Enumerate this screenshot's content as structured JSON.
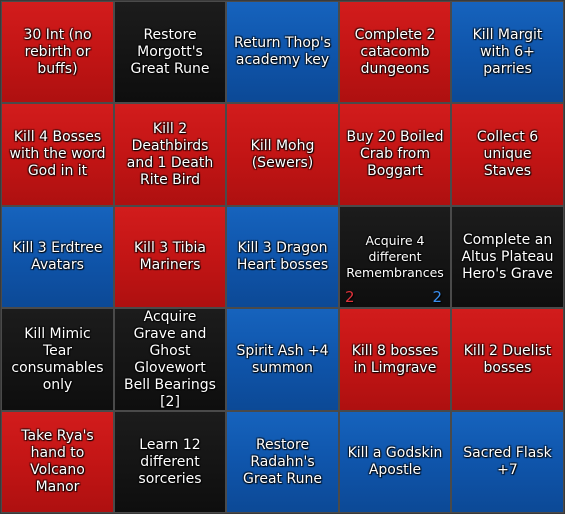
{
  "board": {
    "cells": [
      {
        "label": "30 Int (no rebirth or buffs)",
        "color": "red"
      },
      {
        "label": "Restore Morgott's Great Rune",
        "color": "black"
      },
      {
        "label": "Return Thop's academy key",
        "color": "blue"
      },
      {
        "label": "Complete 2 catacomb dungeons",
        "color": "red"
      },
      {
        "label": "Kill Margit with 6+ parries",
        "color": "blue"
      },
      {
        "label": "Kill 4 Bosses with the word God in it",
        "color": "red"
      },
      {
        "label": "Kill 2 Deathbirds and 1 Death Rite Bird",
        "color": "red"
      },
      {
        "label": "Kill Mohg (Sewers)",
        "color": "red"
      },
      {
        "label": "Buy 20 Boiled Crab from Boggart",
        "color": "red"
      },
      {
        "label": "Collect 6 unique Staves",
        "color": "red"
      },
      {
        "label": "Kill 3 Erdtree Avatars",
        "color": "blue"
      },
      {
        "label": "Kill 3 Tibia Mariners",
        "color": "red"
      },
      {
        "label": "Kill 3 Dragon Heart bosses",
        "color": "blue"
      },
      {
        "label": "Acquire 4 different Remembrances",
        "color": "black",
        "counter_left": "2",
        "counter_right": "2"
      },
      {
        "label": "Complete an Altus Plateau Hero's Grave",
        "color": "black"
      },
      {
        "label": "Kill Mimic Tear consumables only",
        "color": "black"
      },
      {
        "label": "Acquire Grave and Ghost Glovewort Bell Bearings [2]",
        "color": "black"
      },
      {
        "label": "Spirit Ash +4 summon",
        "color": "blue"
      },
      {
        "label": "Kill 8 bosses in Limgrave",
        "color": "red"
      },
      {
        "label": "Kill 2 Duelist bosses",
        "color": "red"
      },
      {
        "label": "Take Rya's hand to Volcano Manor",
        "color": "red"
      },
      {
        "label": "Learn 12 different sorceries",
        "color": "black"
      },
      {
        "label": "Restore Radahn's Great Rune",
        "color": "blue"
      },
      {
        "label": "Kill a Godskin Apostle",
        "color": "blue"
      },
      {
        "label": "Sacred Flask +7",
        "color": "blue"
      }
    ]
  },
  "colors": {
    "red": "#c31515",
    "blue": "#0f55ab",
    "black": "#151515",
    "counter_red": "#e0323a",
    "counter_blue": "#3a8ff0"
  }
}
